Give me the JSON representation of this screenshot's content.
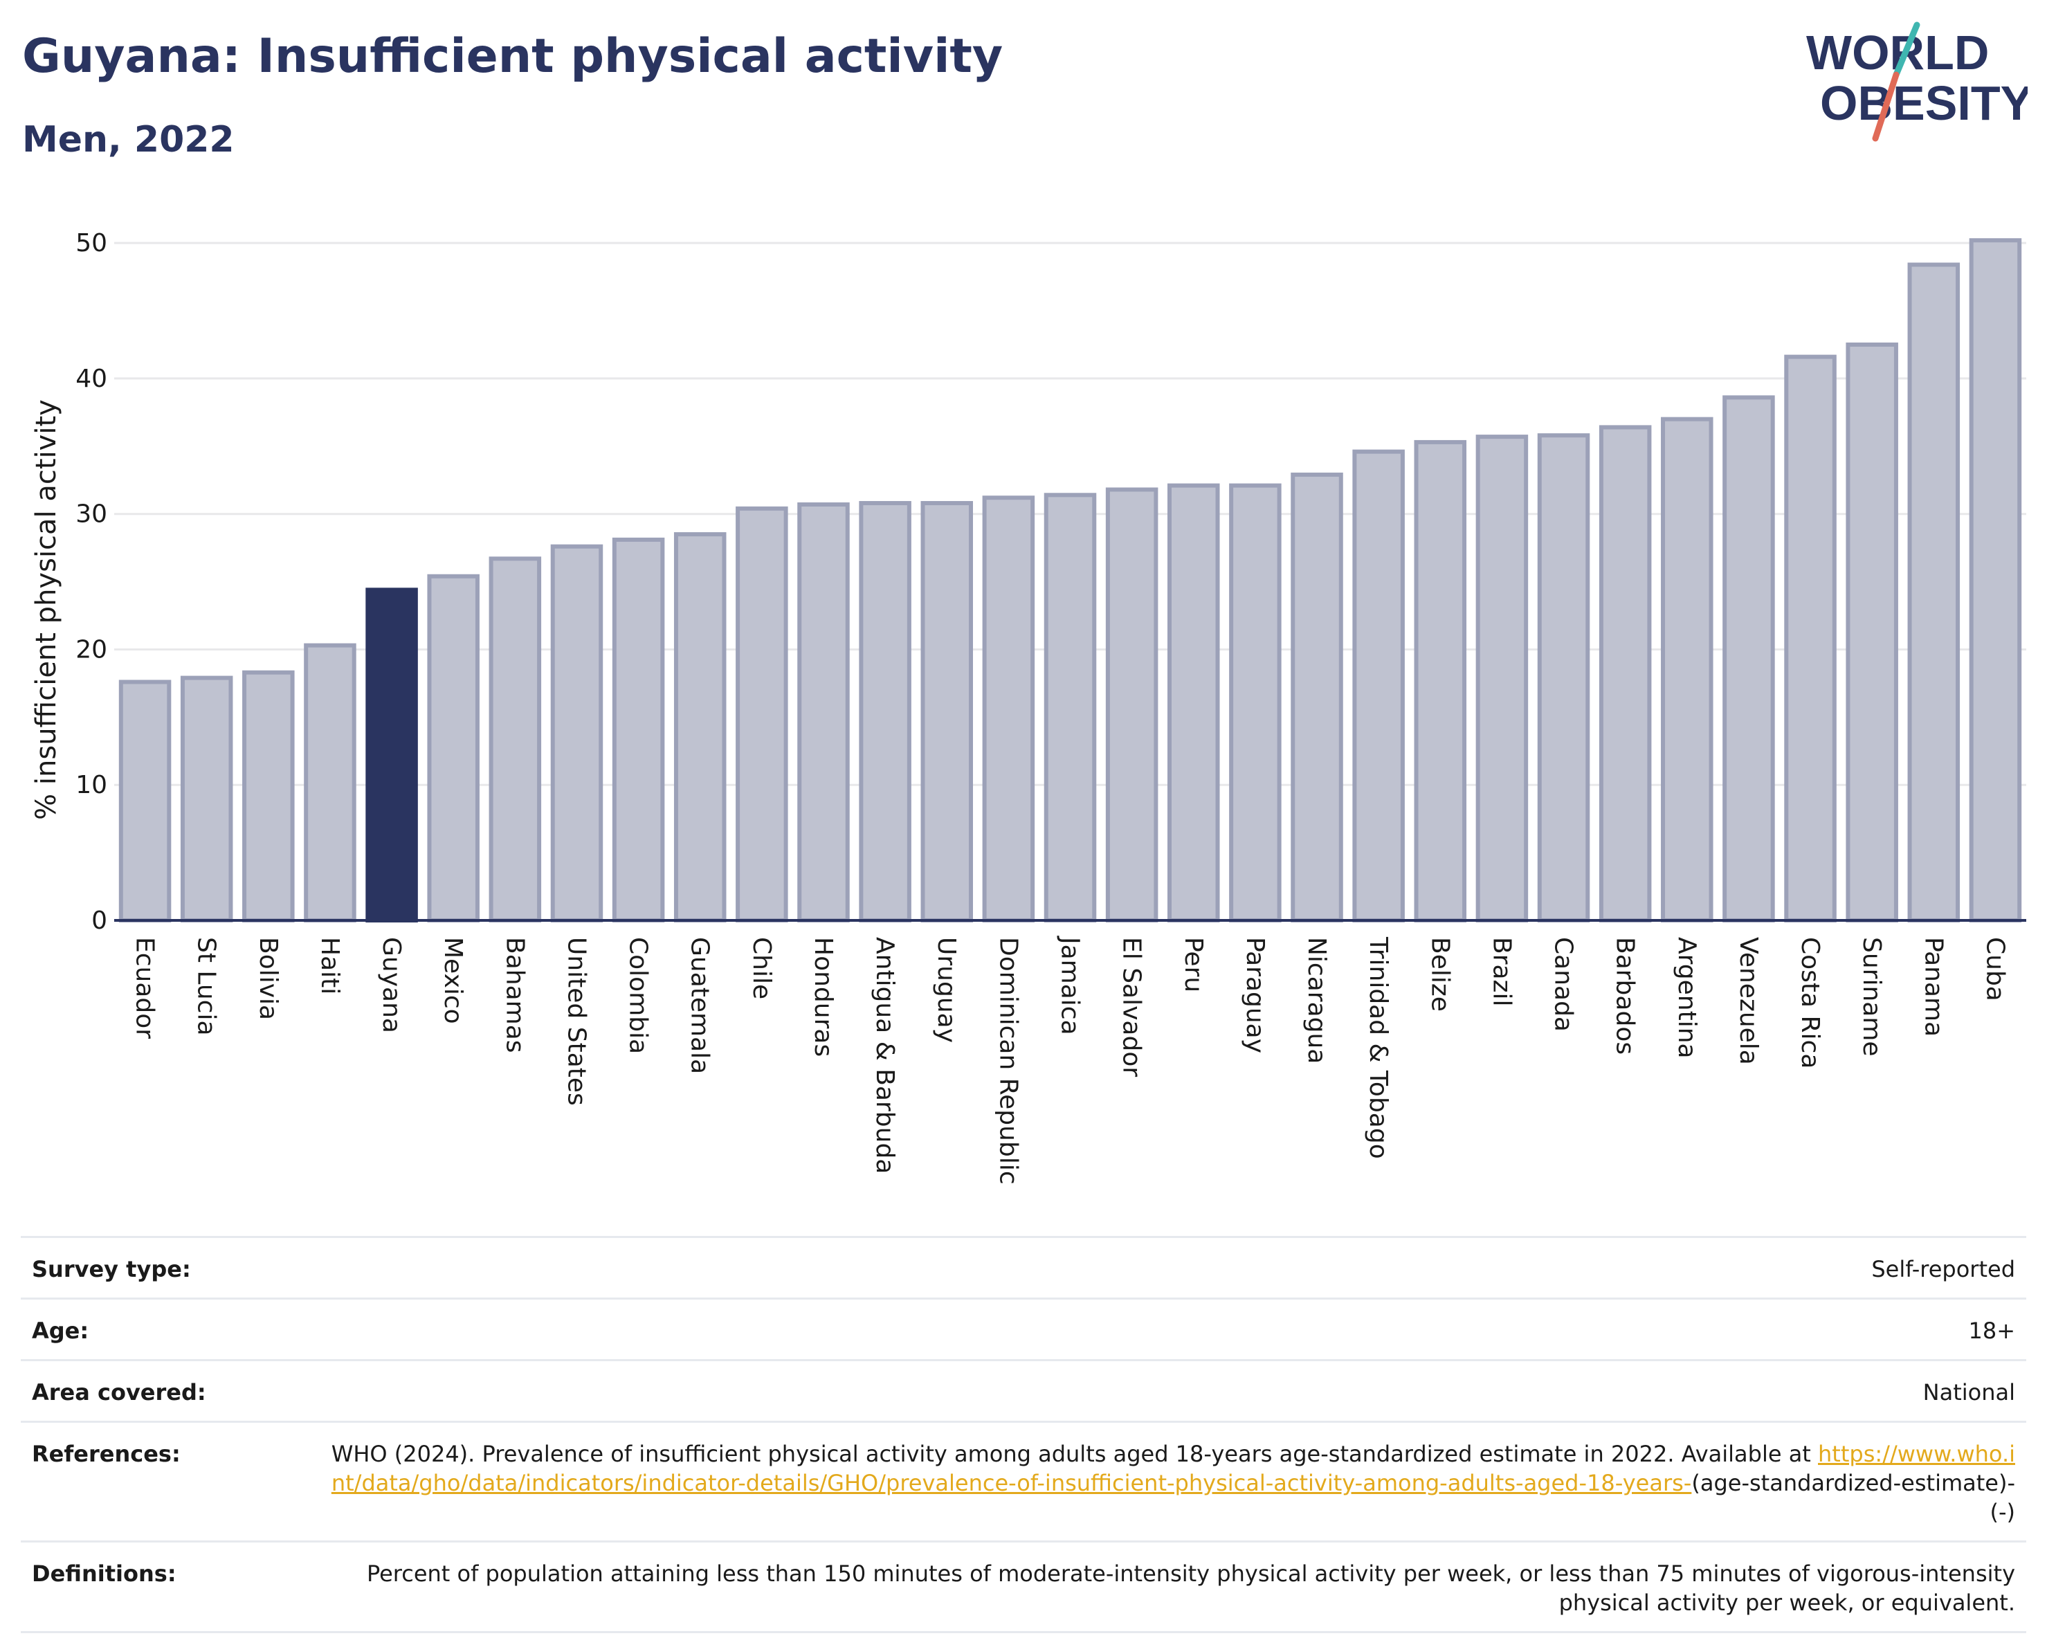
{
  "header": {
    "title": "Guyana: Insufficient physical activity",
    "subtitle": "Men, 2022"
  },
  "logo": {
    "line1": "WORLD",
    "line2": "OBESITY",
    "text_color": "#2a3460",
    "slash_colors": [
      "#3fb6b0",
      "#e06a57"
    ]
  },
  "colors": {
    "bar_fill": "#bfc2d0",
    "bar_stroke": "#9ca1b8",
    "highlight": "#2a3460",
    "axis": "#2a3460",
    "grid": "#e8e8ea",
    "link": "#e3a91c"
  },
  "chart_data": {
    "type": "bar",
    "highlight": "Guyana",
    "categories": [
      "Ecuador",
      "St Lucia",
      "Bolivia",
      "Haiti",
      "Guyana",
      "Mexico",
      "Bahamas",
      "United States",
      "Colombia",
      "Guatemala",
      "Chile",
      "Honduras",
      "Antigua & Barbuda",
      "Uruguay",
      "Dominican Republic",
      "Jamaica",
      "El Salvador",
      "Peru",
      "Paraguay",
      "Nicaragua",
      "Trinidad & Tobago",
      "Belize",
      "Brazil",
      "Canada",
      "Barbados",
      "Argentina",
      "Venezuela",
      "Costa Rica",
      "Suriname",
      "Panama",
      "Cuba"
    ],
    "values": [
      17.6,
      17.9,
      18.3,
      20.3,
      24.4,
      25.4,
      26.7,
      27.6,
      28.1,
      28.5,
      30.4,
      30.7,
      30.8,
      30.8,
      31.2,
      31.4,
      31.8,
      32.1,
      32.1,
      32.9,
      34.6,
      35.3,
      35.7,
      35.8,
      36.4,
      37.0,
      38.6,
      41.6,
      42.5,
      48.4,
      50.2
    ],
    "ylabel": "% insufficient physical activity",
    "xlabel": "",
    "ylim": [
      0,
      52
    ],
    "yticks": [
      0,
      10,
      20,
      30,
      40,
      50
    ],
    "grid": true,
    "legend": "none"
  },
  "meta": {
    "survey_type_label": "Survey type:",
    "survey_type_value": "Self-reported",
    "age_label": "Age:",
    "age_value": "18+",
    "area_label": "Area covered:",
    "area_value": "National",
    "references_label": "References:",
    "references_text": "WHO (2024). Prevalence of insufficient physical activity among adults aged 18-years age-standardized estimate in 2022. Available at",
    "references_link": "https://www.who.int/data/gho/data/indicators/indicator-details/GHO/prevalence-of-insufficient-physical-activity-among-adults-aged-18-years-",
    "references_suffix": "(age-standardized-estimate)-(-)",
    "definitions_label": "Definitions:",
    "definitions_text": "Percent of population attaining less than 150 minutes of moderate-intensity physical activity per week, or less than 75 minutes of vigorous-intensity physical activity per week, or equivalent."
  }
}
